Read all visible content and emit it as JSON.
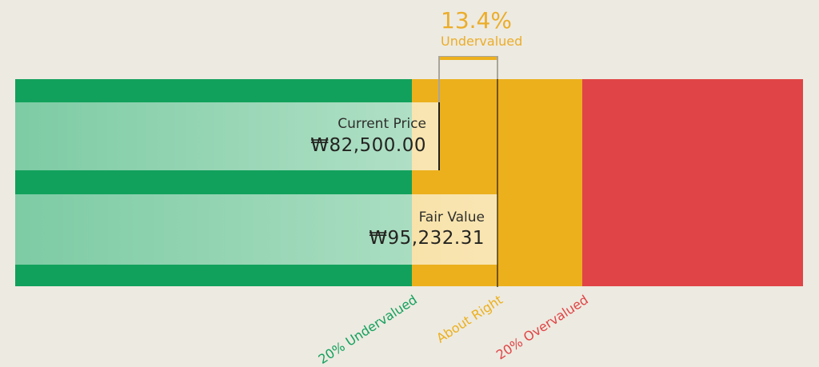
{
  "header": {
    "percent": "13.4%",
    "status": "Undervalued"
  },
  "current_price": {
    "label": "Current Price",
    "value": "₩82,500.00"
  },
  "fair_value": {
    "label": "Fair Value",
    "value": "₩95,232.31"
  },
  "axis": {
    "undervalued": "20% Undervalued",
    "about_right": "About Right",
    "overvalued": "20% Overvalued"
  },
  "colors": {
    "background": "#EDEAE1",
    "undervalued_green": "#12A15C",
    "about_right_amber": "#ECB01D",
    "overvalued_red": "#E04446",
    "annotation_amber": "#EBAD2A",
    "callout_text": "#242421",
    "marker_gray": "#A9A59B",
    "marker_dark": "#1F1F1C"
  },
  "chart_data": {
    "type": "bar",
    "subtype": "valuation-gauge",
    "title": "13.4% Undervalued",
    "currency_symbol": "₩",
    "current_price": 82500.0,
    "fair_value": 95232.31,
    "discount_pct": 13.4,
    "discount_direction": "Undervalued",
    "zones": [
      {
        "label": "20% Undervalued",
        "meaning": "price below 80% of fair value",
        "color": "#12A15C"
      },
      {
        "label": "About Right",
        "meaning": "price within ±20% of fair value",
        "color": "#ECB01D"
      },
      {
        "label": "20% Overvalued",
        "meaning": "price above 120% of fair value",
        "color": "#E04446"
      }
    ],
    "zone_threshold_pct": 20,
    "legend_position": "bottom-diagonal",
    "grid": false
  }
}
